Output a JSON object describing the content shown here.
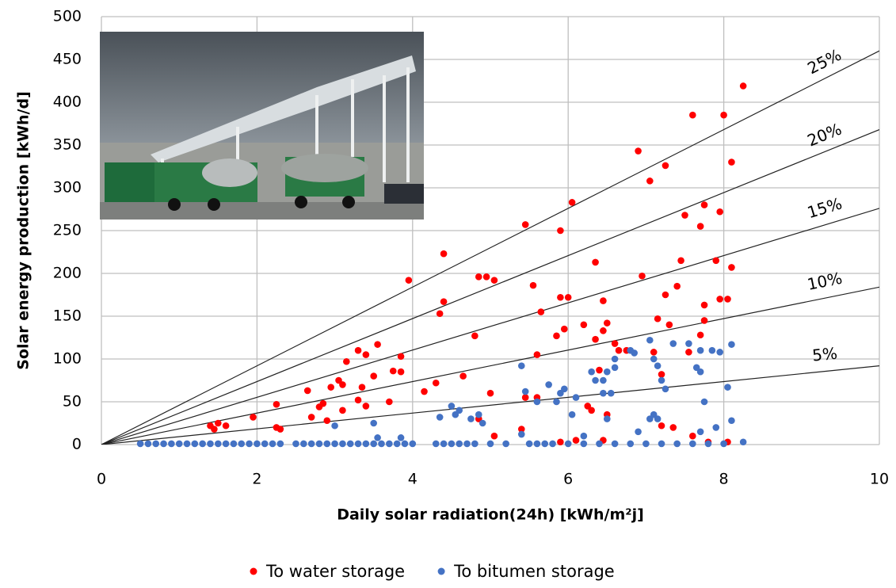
{
  "chart_data": {
    "type": "scatter",
    "xlabel": "Daily solar radiation(24h)  [kWh/m²j]",
    "ylabel": "Solar energy production  [kWh/d]",
    "xlim": [
      0,
      10
    ],
    "xticks": [
      0,
      2,
      4,
      6,
      8,
      10
    ],
    "ylim": [
      0,
      500
    ],
    "yticks": [
      0,
      50,
      100,
      150,
      200,
      250,
      300,
      350,
      400,
      450,
      500
    ],
    "grid": true,
    "legend": "bottom",
    "reference_lines": [
      {
        "label": "25%",
        "x": [
          0,
          10
        ],
        "values": [
          0,
          460
        ]
      },
      {
        "label": "20%",
        "x": [
          0,
          10
        ],
        "values": [
          0,
          368
        ]
      },
      {
        "label": "15%",
        "x": [
          0,
          10
        ],
        "values": [
          0,
          276
        ]
      },
      {
        "label": "10%",
        "x": [
          0,
          10
        ],
        "values": [
          0,
          184
        ]
      },
      {
        "label": "5%",
        "x": [
          0,
          10
        ],
        "values": [
          0,
          92
        ]
      }
    ],
    "series": [
      {
        "name": "To water storage",
        "color": "#ff0000",
        "x": [
          1.4,
          1.45,
          1.5,
          1.6,
          1.95,
          2.25,
          2.25,
          2.3,
          2.65,
          2.7,
          2.8,
          2.85,
          2.9,
          2.95,
          3.05,
          3.1,
          3.1,
          3.15,
          3.3,
          3.3,
          3.35,
          3.4,
          3.4,
          3.5,
          3.55,
          3.7,
          3.75,
          3.85,
          3.85,
          3.95,
          4.15,
          4.3,
          4.35,
          4.4,
          4.4,
          4.65,
          4.8,
          4.85,
          4.95,
          5.0,
          5.05,
          5.4,
          5.45,
          5.55,
          5.6,
          5.6,
          5.65,
          5.85,
          5.9,
          5.9,
          5.95,
          6.0,
          6.05,
          6.2,
          6.25,
          6.35,
          6.35,
          6.4,
          6.45,
          6.45,
          6.5,
          6.6,
          6.65,
          6.75,
          6.9,
          6.95,
          7.05,
          7.1,
          7.15,
          7.2,
          7.25,
          7.25,
          7.3,
          7.4,
          7.45,
          7.5,
          7.55,
          7.6,
          7.7,
          7.7,
          7.75,
          7.75,
          7.75,
          7.9,
          7.95,
          7.95,
          8.0,
          8.05,
          8.1,
          8.1,
          8.25,
          7.2,
          7.35,
          6.5,
          6.3,
          5.45,
          6.45,
          6.1,
          5.9,
          7.8,
          8.05,
          7.6,
          5.05,
          4.85
        ],
        "values": [
          22,
          18,
          25,
          22,
          32,
          47,
          20,
          18,
          63,
          32,
          44,
          48,
          28,
          67,
          75,
          40,
          70,
          97,
          52,
          110,
          67,
          105,
          45,
          80,
          117,
          50,
          86,
          103,
          85,
          192,
          62,
          72,
          153,
          167,
          223,
          80,
          127,
          196,
          196,
          60,
          192,
          18,
          257,
          186,
          105,
          55,
          155,
          127,
          250,
          172,
          135,
          172,
          283,
          140,
          45,
          213,
          123,
          87,
          168,
          133,
          142,
          118,
          110,
          110,
          343,
          197,
          308,
          108,
          147,
          82,
          326,
          175,
          140,
          185,
          215,
          268,
          108,
          385,
          128,
          255,
          163,
          280,
          145,
          215,
          272,
          170,
          385,
          170,
          330,
          207,
          419,
          22,
          20,
          35,
          40,
          55,
          5,
          5,
          3,
          3,
          3,
          10,
          10,
          30
        ]
      },
      {
        "name": "To bitumen storage",
        "color": "#4472c4",
        "x": [
          0.5,
          0.6,
          0.7,
          0.8,
          0.9,
          1.0,
          1.1,
          1.2,
          1.3,
          1.4,
          1.5,
          1.6,
          1.7,
          1.8,
          1.9,
          2.0,
          2.1,
          2.2,
          2.3,
          2.5,
          2.6,
          2.7,
          2.8,
          2.9,
          3.0,
          3.1,
          3.2,
          3.3,
          3.4,
          3.5,
          3.6,
          3.7,
          3.8,
          3.9,
          4.0,
          4.3,
          4.4,
          4.5,
          4.6,
          4.7,
          4.8,
          5.0,
          5.2,
          5.5,
          5.6,
          5.7,
          5.8,
          6.0,
          6.2,
          6.4,
          6.6,
          6.8,
          7.0,
          7.2,
          7.4,
          7.6,
          7.8,
          8.0,
          8.25,
          3.0,
          3.5,
          3.55,
          3.85,
          4.35,
          4.5,
          4.55,
          4.6,
          4.75,
          4.85,
          5.4,
          5.45,
          5.6,
          5.75,
          5.85,
          5.9,
          5.95,
          6.05,
          6.1,
          6.3,
          6.35,
          6.45,
          6.45,
          6.5,
          6.55,
          6.6,
          6.6,
          6.8,
          6.85,
          7.05,
          7.1,
          7.15,
          7.2,
          7.25,
          7.35,
          7.55,
          7.65,
          7.7,
          7.7,
          7.75,
          7.85,
          7.95,
          8.05,
          8.1,
          8.1,
          7.9,
          7.1,
          7.05,
          6.9,
          6.5,
          6.2,
          5.4,
          4.9,
          7.15,
          7.7
        ],
        "values": [
          1,
          1,
          1,
          1,
          1,
          1,
          1,
          1,
          1,
          1,
          1,
          1,
          1,
          1,
          1,
          1,
          1,
          1,
          1,
          1,
          1,
          1,
          1,
          1,
          1,
          1,
          1,
          1,
          1,
          1,
          1,
          1,
          1,
          1,
          1,
          1,
          1,
          1,
          1,
          1,
          1,
          1,
          1,
          1,
          1,
          1,
          1,
          1,
          1,
          1,
          1,
          1,
          1,
          1,
          1,
          1,
          1,
          1,
          3,
          22,
          25,
          8,
          8,
          32,
          45,
          35,
          40,
          30,
          35,
          92,
          62,
          50,
          70,
          50,
          60,
          65,
          35,
          55,
          85,
          75,
          75,
          60,
          85,
          60,
          100,
          90,
          110,
          107,
          122,
          100,
          92,
          75,
          65,
          118,
          118,
          90,
          85,
          110,
          50,
          110,
          108,
          67,
          117,
          28,
          20,
          35,
          30,
          15,
          30,
          10,
          12,
          25,
          30,
          15
        ]
      }
    ]
  }
}
